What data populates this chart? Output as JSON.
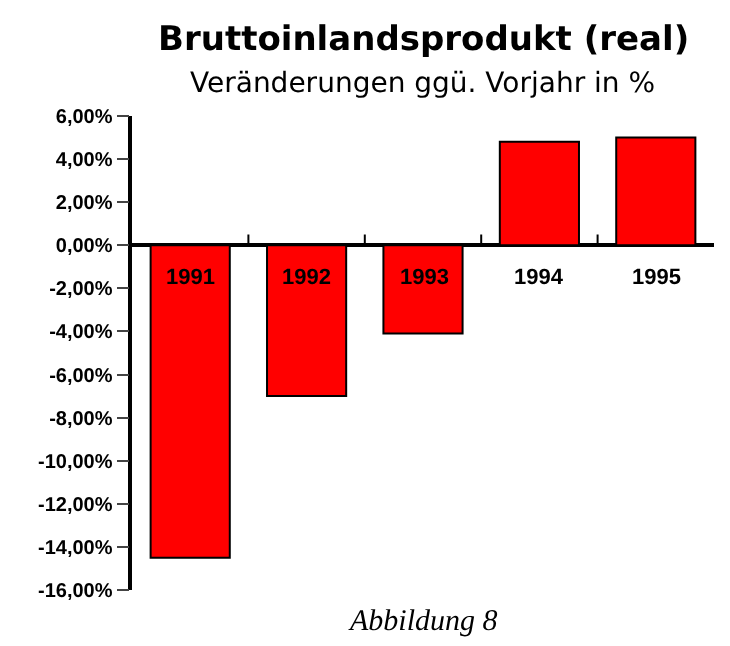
{
  "chart_data": {
    "type": "bar",
    "title": "Bruttoinlandsprodukt (real)",
    "subtitle": "Veränderungen ggü. Vorjahr in %",
    "categories": [
      "1991",
      "1992",
      "1993",
      "1994",
      "1995"
    ],
    "values": [
      -14.5,
      -7.0,
      -4.1,
      4.8,
      5.0
    ],
    "color": "#ff0000",
    "ylim": [
      -16,
      6
    ],
    "yticks": [
      {
        "value": 6,
        "label": "6,00%"
      },
      {
        "value": 4,
        "label": "4,00%"
      },
      {
        "value": 2,
        "label": "2,00%"
      },
      {
        "value": 0,
        "label": "0,00%"
      },
      {
        "value": -2,
        "label": "-2,00%"
      },
      {
        "value": -4,
        "label": "-4,00%"
      },
      {
        "value": -6,
        "label": "-6,00%"
      },
      {
        "value": -8,
        "label": "-8,00%"
      },
      {
        "value": -10,
        "label": "-10,00%"
      },
      {
        "value": -12,
        "label": "-12,00%"
      },
      {
        "value": -14,
        "label": "-14,00%"
      },
      {
        "value": -16,
        "label": "-16,00%"
      }
    ],
    "annotations": [
      "Abbildung 8"
    ]
  }
}
